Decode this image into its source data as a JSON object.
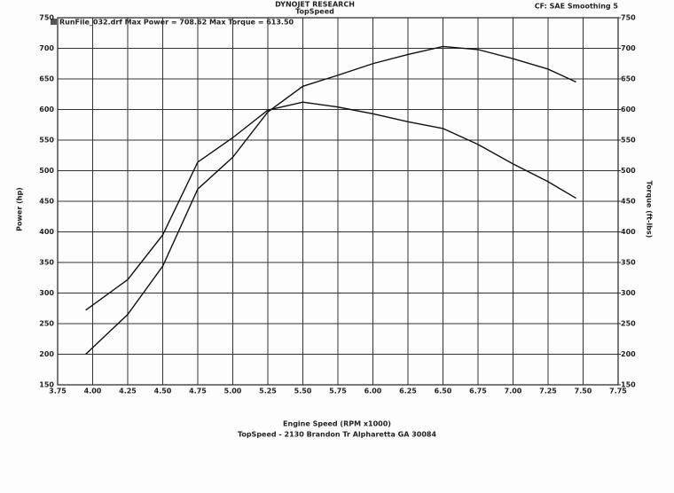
{
  "chart_data": {
    "type": "line",
    "title": "DYNOJET RESEARCH",
    "subtitle": "TopSpeed",
    "corner_note": "CF: SAE Smoothing 5",
    "legend_text": "RunFile_032.drf Max Power = 708.62   Max Torque = 613.50",
    "xlabel": "Engine Speed (RPM x1000)",
    "ylabel": "Power (hp)",
    "y2label": "Torque (ft-lbs)",
    "footer": "TopSpeed - 2130 Brandon Tr Alpharetta GA 30084",
    "x": [
      3.95,
      4.25,
      4.5,
      4.75,
      5.0,
      5.25,
      5.5,
      5.75,
      6.0,
      6.25,
      6.5,
      6.75,
      7.0,
      7.25,
      7.45
    ],
    "series": [
      {
        "name": "Power",
        "color": "#111111",
        "axis": "y",
        "values": [
          200,
          265,
          344,
          470,
          522,
          596,
          638,
          656,
          675,
          690,
          703,
          698,
          683,
          666,
          645
        ]
      },
      {
        "name": "Torque",
        "color": "#111111",
        "axis": "y2",
        "values": [
          272,
          322,
          395,
          514,
          554,
          599,
          612,
          604,
          593,
          580,
          569,
          543,
          511,
          482,
          455
        ]
      }
    ],
    "xlim": [
      3.75,
      7.75
    ],
    "xticks": [
      3.75,
      {
        "value": 4,
        "label": "4.00"
      },
      4.25,
      {
        "value": 4.5,
        "label": "4.50"
      },
      4.75,
      {
        "value": 5,
        "label": "5.00"
      },
      5.25,
      {
        "value": 5.5,
        "label": "5.50"
      },
      5.75,
      {
        "value": 6,
        "label": "6.00"
      },
      6.25,
      {
        "value": 6.5,
        "label": "6.50"
      },
      6.75,
      {
        "value": 7,
        "label": "7.00"
      },
      7.25,
      {
        "value": 7.5,
        "label": "7.50"
      },
      7.75
    ],
    "ylim": [
      150,
      750
    ],
    "yticks": [
      150,
      200,
      250,
      300,
      350,
      400,
      450,
      500,
      550,
      600,
      650,
      700,
      750
    ],
    "y2lim": [
      150,
      750
    ],
    "y2ticks": [
      150,
      200,
      250,
      300,
      350,
      400,
      450,
      500,
      550,
      600,
      650,
      700,
      750
    ],
    "grid": true
  }
}
